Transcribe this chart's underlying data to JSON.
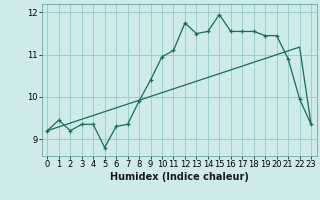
{
  "title": "",
  "xlabel": "Humidex (Indice chaleur)",
  "background_color": "#ceeaea",
  "grid_color": "#9ecece",
  "line_color": "#1a6b5a",
  "curve1_x": [
    0,
    1,
    2,
    3,
    4,
    5,
    6,
    7,
    8,
    9,
    10,
    11,
    12,
    13,
    14,
    15,
    16,
    17,
    18,
    19,
    20,
    21,
    22,
    23
  ],
  "curve1_y": [
    9.2,
    9.45,
    9.2,
    9.35,
    9.35,
    8.8,
    9.3,
    9.35,
    9.9,
    10.4,
    10.95,
    11.1,
    11.75,
    11.5,
    11.55,
    11.95,
    11.55,
    11.55,
    11.55,
    11.45,
    11.45,
    10.9,
    9.95,
    9.35
  ],
  "curve2_x": [
    0,
    1,
    2,
    3,
    4,
    5,
    6,
    7,
    8,
    9,
    10,
    11,
    12,
    13,
    14,
    15,
    16,
    17,
    18,
    19,
    20,
    21,
    22,
    23
  ],
  "curve2_y": [
    9.2,
    9.29,
    9.38,
    9.47,
    9.56,
    9.65,
    9.74,
    9.83,
    9.92,
    10.01,
    10.1,
    10.19,
    10.28,
    10.37,
    10.46,
    10.55,
    10.64,
    10.73,
    10.82,
    10.91,
    11.0,
    11.09,
    11.18,
    9.35
  ],
  "xlim": [
    -0.5,
    23.5
  ],
  "ylim": [
    8.6,
    12.2
  ],
  "yticks": [
    9,
    10,
    11,
    12
  ],
  "xticks": [
    0,
    1,
    2,
    3,
    4,
    5,
    6,
    7,
    8,
    9,
    10,
    11,
    12,
    13,
    14,
    15,
    16,
    17,
    18,
    19,
    20,
    21,
    22,
    23
  ],
  "xlabel_fontsize": 7,
  "tick_fontsize": 6
}
